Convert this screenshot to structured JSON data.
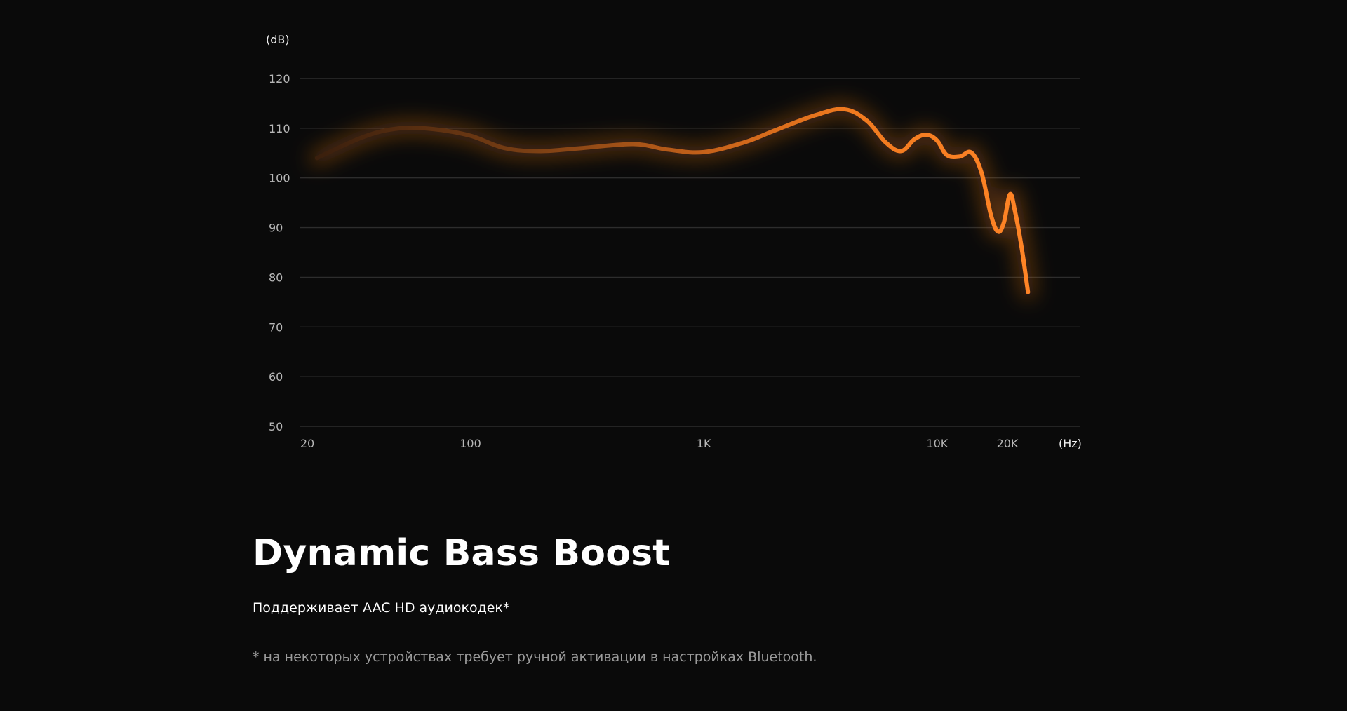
{
  "chart_data": {
    "type": "line",
    "xlabel": "(Hz)",
    "ylabel": "(dB)",
    "x_scale": "log",
    "xlim": [
      20,
      30000
    ],
    "ylim": [
      50,
      120
    ],
    "x_ticks": [
      {
        "value": 20,
        "label": "20"
      },
      {
        "value": 100,
        "label": "100"
      },
      {
        "value": 1000,
        "label": "1K"
      },
      {
        "value": 10000,
        "label": "10K"
      },
      {
        "value": 20000,
        "label": "20K"
      }
    ],
    "y_ticks": [
      120,
      110,
      100,
      90,
      80,
      70,
      60,
      50
    ],
    "grid": true,
    "line_color": "#f07a1f",
    "series": [
      {
        "values": [
          {
            "x": 22,
            "y": 104
          },
          {
            "x": 35,
            "y": 108.3
          },
          {
            "x": 50,
            "y": 110
          },
          {
            "x": 70,
            "y": 109.8
          },
          {
            "x": 100,
            "y": 108.5
          },
          {
            "x": 140,
            "y": 106
          },
          {
            "x": 200,
            "y": 105.4
          },
          {
            "x": 300,
            "y": 106
          },
          {
            "x": 500,
            "y": 106.8
          },
          {
            "x": 700,
            "y": 105.7
          },
          {
            "x": 1000,
            "y": 105.2
          },
          {
            "x": 1500,
            "y": 107.2
          },
          {
            "x": 2000,
            "y": 109.5
          },
          {
            "x": 3000,
            "y": 112.6
          },
          {
            "x": 4000,
            "y": 113.8
          },
          {
            "x": 5000,
            "y": 111.5
          },
          {
            "x": 6000,
            "y": 107.2
          },
          {
            "x": 7000,
            "y": 105.4
          },
          {
            "x": 8000,
            "y": 107.8
          },
          {
            "x": 9000,
            "y": 108.7
          },
          {
            "x": 10000,
            "y": 107.5
          },
          {
            "x": 11000,
            "y": 104.6
          },
          {
            "x": 12500,
            "y": 104.3
          },
          {
            "x": 14000,
            "y": 105.1
          },
          {
            "x": 15500,
            "y": 101
          },
          {
            "x": 17000,
            "y": 92.5
          },
          {
            "x": 18200,
            "y": 89.2
          },
          {
            "x": 19300,
            "y": 91
          },
          {
            "x": 20500,
            "y": 96.7
          },
          {
            "x": 21500,
            "y": 93.5
          },
          {
            "x": 23000,
            "y": 86
          },
          {
            "x": 24500,
            "y": 77
          }
        ]
      }
    ]
  },
  "section": {
    "title": "Dynamic Bass Boost",
    "subtitle": "Поддерживает AAC HD аудиокодек*",
    "footnote": "* на некоторых устройствах требует ручной активации в настройках Bluetooth."
  }
}
